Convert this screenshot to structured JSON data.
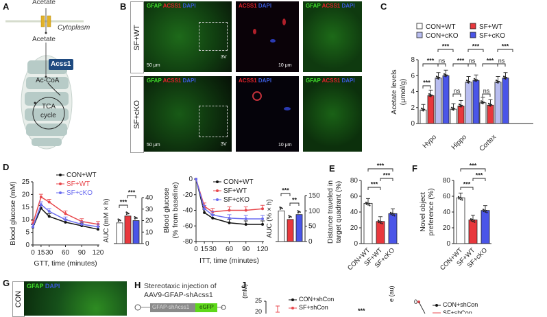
{
  "panels": {
    "A": {
      "letter": "A",
      "acetate_top": "Acetate",
      "cytoplasm": "Cytoplasm",
      "acetate_mid": "Acetate",
      "enzyme": "Acss1",
      "product": "Ac-CoA",
      "cycle_line1": "TCA",
      "cycle_line2": "cycle"
    },
    "B": {
      "letter": "B",
      "rows": [
        {
          "label": "SF+WT"
        },
        {
          "label": "SF+cKO"
        }
      ],
      "col_labels": {
        "merge": [
          "GFAP",
          "ACSS1",
          "DAPI"
        ],
        "zoom": [
          "ACSS1",
          "DAPI"
        ]
      },
      "scale_low": "50 μm",
      "scale_high": "10 μm",
      "region": "3V"
    },
    "C": {
      "letter": "C",
      "legend": [
        "CON+WT",
        "CON+cKO",
        "SF+WT",
        "SF+cKO"
      ],
      "ylabel_line1": "Acetate levels",
      "ylabel_line2": "(μmol/g)",
      "sig": {
        "hypo": [
          "***",
          "***",
          "ns",
          "***"
        ],
        "hippo": [
          "ns",
          "***",
          "ns",
          "***"
        ],
        "cortex": [
          "ns",
          "***",
          "ns",
          "***"
        ]
      }
    },
    "D": {
      "letter": "D",
      "xlabel": "GTT, time (minutes)",
      "ylabel": "Blood glucose (mM)",
      "auc_label": "AUC (mM × h)",
      "legend": [
        "CON+WT",
        "SF+WT",
        "SF+cKO"
      ],
      "sig": [
        "***",
        "***"
      ]
    },
    "D2": {
      "xlabel": "ITT, time (minutes)",
      "ylabel_line1": "Blood glucose",
      "ylabel_line2": "(% from baseline)",
      "auc_label": "AUC (% × h)",
      "legend": [
        "CON+WT",
        "SF+WT",
        "SF+cKO"
      ],
      "sig": [
        "***",
        "**"
      ]
    },
    "E": {
      "letter": "E",
      "ylabel_line1": "Distance traveled in",
      "ylabel_line2": "target quadrant (%)",
      "categories": [
        "CON+WT",
        "SF+WT",
        "SF+cKO"
      ],
      "sig": [
        "***",
        "***",
        "***"
      ]
    },
    "F": {
      "letter": "F",
      "ylabel_line1": "Novel object",
      "ylabel_line2": "preference (%)",
      "categories": [
        "CON+WT",
        "SF+WT",
        "SF+cKO"
      ],
      "sig": [
        "***",
        "***",
        "***"
      ]
    },
    "G": {
      "letter": "G",
      "row_label": "CON",
      "stain": [
        "GFAP",
        "DAPI"
      ]
    },
    "H": {
      "letter": "H",
      "title_line1": "Stereotaxic injection of",
      "title_line2": "AAV9-GFAP-shAcss1",
      "construct_a": "GFAP-shAcss1",
      "construct_b": "eGFP"
    },
    "J": {
      "letter": "J",
      "ylabel_partial": "(mM)",
      "ytick_top": "25",
      "ytick_next": "20",
      "legend": [
        "CON+shCon",
        "SF+shCon"
      ],
      "sig": "***",
      "right_ylabel_partial": "e (au)",
      "right_ytick": "0",
      "right_legend": [
        "CON+shCon",
        "SF+shCon"
      ]
    }
  },
  "colors": {
    "con_wt": "#ffffff",
    "con_cko": "#b8bdf0",
    "sf_wt": "#e8383d",
    "sf_cko": "#4a55e8",
    "line_black": "#111111",
    "line_red": "#e8474c",
    "line_blue": "#6a6cf0",
    "acss1_box": "#1f4a80",
    "mito": "#b7cbc7",
    "channel": "#e2b228"
  },
  "chart_data": [
    {
      "id": "C",
      "type": "bar",
      "title": "",
      "xlabel": "",
      "ylabel": "Acetate levels (μmol/g)",
      "categories": [
        "Hypo",
        "Hippo",
        "Cortex"
      ],
      "ylim": [
        0,
        8
      ],
      "yticks": [
        0,
        2,
        4,
        6,
        8
      ],
      "legend_position": "top",
      "series": [
        {
          "name": "CON+WT",
          "values": [
            1.7,
            1.8,
            2.6
          ]
        },
        {
          "name": "SF+WT",
          "values": [
            3.5,
            2.2,
            2.3
          ]
        },
        {
          "name": "CON+cKO",
          "values": [
            5.7,
            5.2,
            5.2
          ]
        },
        {
          "name": "SF+cKO",
          "values": [
            6.0,
            5.4,
            5.7
          ]
        }
      ]
    },
    {
      "id": "D_GTT",
      "type": "line",
      "xlabel": "GTT, time (minutes)",
      "ylabel": "Blood glucose (mM)",
      "x": [
        0,
        15,
        30,
        60,
        90,
        120
      ],
      "ylim": [
        0,
        25
      ],
      "yticks": [
        0,
        5,
        10,
        15,
        20,
        25
      ],
      "series": [
        {
          "name": "CON+WT",
          "values": [
            7.0,
            14.5,
            11.3,
            9.0,
            7.6,
            6.2
          ]
        },
        {
          "name": "SF+WT",
          "values": [
            8.5,
            19.0,
            17.0,
            12.4,
            9.3,
            8.2
          ]
        },
        {
          "name": "SF+cKO",
          "values": [
            7.2,
            16.0,
            13.3,
            10.0,
            8.2,
            7.2
          ]
        }
      ]
    },
    {
      "id": "D_GTT_AUC",
      "type": "bar",
      "ylabel": "AUC (mM × h)",
      "categories": [
        "CON+WT",
        "SF+WT",
        "SF+cKO"
      ],
      "values": [
        18,
        24,
        20
      ],
      "ylim": [
        0,
        40
      ],
      "yticks": [
        0,
        10,
        20,
        30,
        40
      ]
    },
    {
      "id": "D_ITT",
      "type": "line",
      "xlabel": "ITT, time (minutes)",
      "ylabel": "Blood glucose (% from baseline)",
      "x": [
        0,
        15,
        30,
        60,
        90,
        120
      ],
      "ylim": [
        -80,
        0
      ],
      "yticks": [
        -80,
        -60,
        -40,
        -20,
        0
      ],
      "series": [
        {
          "name": "CON+WT",
          "values": [
            0,
            -43,
            -50,
            -56,
            -58,
            -58
          ]
        },
        {
          "name": "SF+WT",
          "values": [
            0,
            -35,
            -42,
            -40,
            -40,
            -38
          ]
        },
        {
          "name": "SF+cKO",
          "values": [
            0,
            -38,
            -46,
            -50,
            -51,
            -51
          ]
        }
      ]
    },
    {
      "id": "D_ITT_AUC",
      "type": "bar",
      "ylabel": "AUC (% × h)",
      "categories": [
        "CON+WT",
        "SF+WT",
        "SF+cKO"
      ],
      "values": [
        100,
        72,
        88
      ],
      "ylim": [
        0,
        150
      ],
      "yticks": [
        0,
        50,
        100,
        150
      ]
    },
    {
      "id": "E",
      "type": "bar",
      "ylabel": "Distance traveled in target quadrant (%)",
      "categories": [
        "CON+WT",
        "SF+WT",
        "SF+cKO"
      ],
      "values": [
        51,
        28,
        38
      ],
      "ylim": [
        0,
        80
      ],
      "yticks": [
        0,
        20,
        40,
        60,
        80
      ]
    },
    {
      "id": "F",
      "type": "bar",
      "ylabel": "Novel object preference (%)",
      "categories": [
        "CON+WT",
        "SF+WT",
        "SF+cKO"
      ],
      "values": [
        58,
        30,
        42
      ],
      "ylim": [
        0,
        80
      ],
      "yticks": [
        0,
        20,
        40,
        60,
        80
      ]
    }
  ]
}
